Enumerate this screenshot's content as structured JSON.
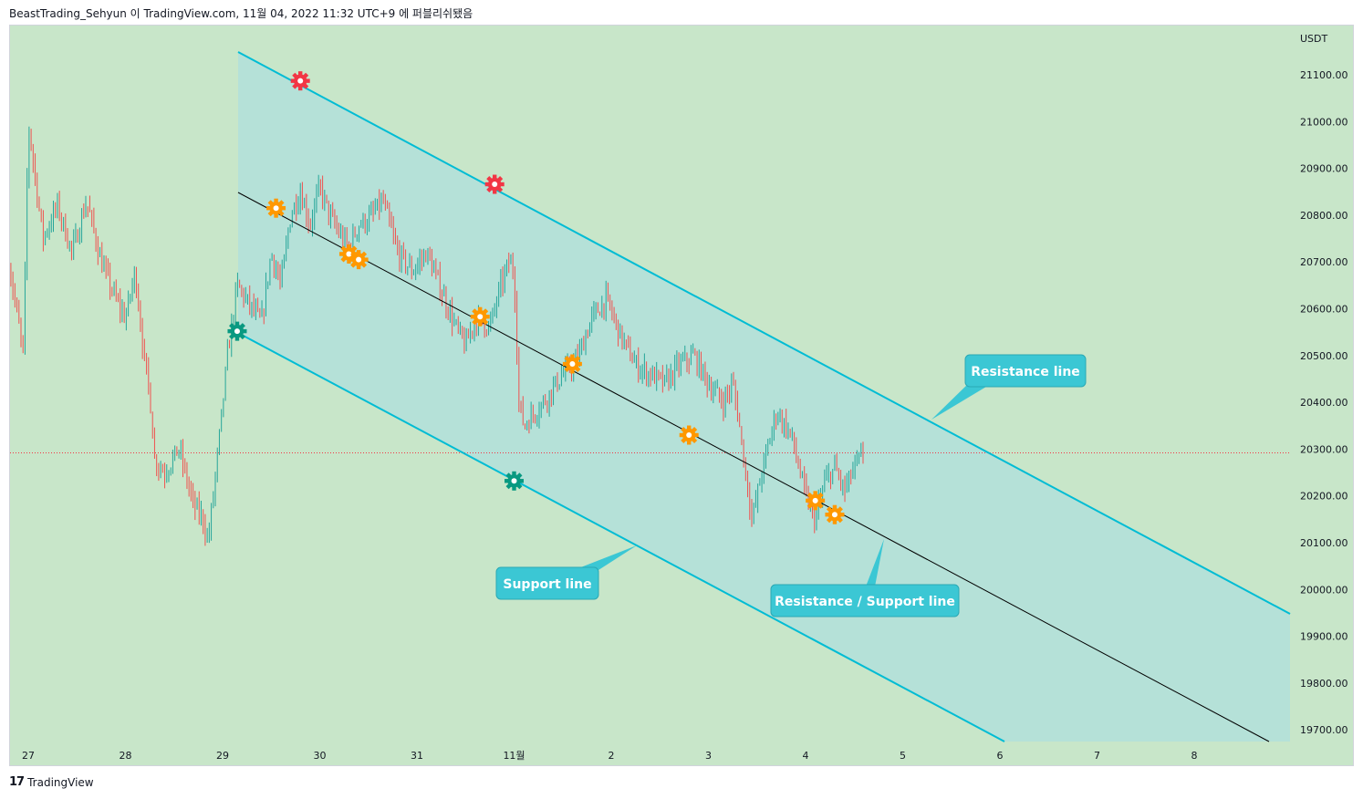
{
  "header": {
    "publish_info": "BeastTrading_Sehyun 이 TradingView.com, 11월 04, 2022 11:32 UTC+9 에 퍼블리쉬됐음"
  },
  "footer": {
    "logo_mark": "17",
    "brand": "TradingView"
  },
  "colors": {
    "background": "#c8e6c9",
    "channel_fill": "#b2dfdb",
    "channel_line": "#00bcd4",
    "mid_line": "#000000",
    "candle_up": "#26a69a",
    "candle_down": "#ef5350",
    "label_bg": "#3bc7d4",
    "gear_red": "#f23645",
    "gear_orange": "#ff9800",
    "gear_teal": "#089981",
    "price_line": "#f23645"
  },
  "chart_data": {
    "type": "candlestick",
    "symbol_currency": "USDT",
    "x_tick_labels": [
      "27",
      "28",
      "29",
      "30",
      "31",
      "11월",
      "2",
      "3",
      "4",
      "5",
      "6",
      "7",
      "8"
    ],
    "y_tick_labels": [
      "21100.00",
      "21000.00",
      "20900.00",
      "20800.00",
      "20700.00",
      "20600.00",
      "20500.00",
      "20400.00",
      "20300.00",
      "20200.00",
      "20100.00",
      "20000.00",
      "19900.00",
      "19800.00",
      "19700.00"
    ],
    "ylim": [
      19680,
      21185
    ],
    "xlim": [
      26.8,
      9.1
    ],
    "current_price": 20292,
    "price_path": [
      [
        26.8,
        20700
      ],
      [
        26.95,
        20500
      ],
      [
        27.0,
        21000
      ],
      [
        27.15,
        20750
      ],
      [
        27.3,
        20820
      ],
      [
        27.45,
        20720
      ],
      [
        27.6,
        20830
      ],
      [
        27.75,
        20700
      ],
      [
        27.9,
        20620
      ],
      [
        28.0,
        20580
      ],
      [
        28.1,
        20680
      ],
      [
        28.2,
        20480
      ],
      [
        28.25,
        20420
      ],
      [
        28.3,
        20280
      ],
      [
        28.4,
        20250
      ],
      [
        28.55,
        20300
      ],
      [
        28.7,
        20180
      ],
      [
        28.8,
        20150
      ],
      [
        28.85,
        20100
      ],
      [
        28.95,
        20290
      ],
      [
        29.05,
        20500
      ],
      [
        29.15,
        20650
      ],
      [
        29.3,
        20600
      ],
      [
        29.4,
        20570
      ],
      [
        29.5,
        20720
      ],
      [
        29.6,
        20650
      ],
      [
        29.7,
        20800
      ],
      [
        29.8,
        20850
      ],
      [
        29.9,
        20780
      ],
      [
        30.0,
        20860
      ],
      [
        30.1,
        20800
      ],
      [
        30.2,
        20760
      ],
      [
        30.3,
        20730
      ],
      [
        30.4,
        20780
      ],
      [
        30.5,
        20790
      ],
      [
        30.65,
        20830
      ],
      [
        30.8,
        20720
      ],
      [
        30.95,
        20680
      ],
      [
        31.1,
        20720
      ],
      [
        31.25,
        20640
      ],
      [
        31.4,
        20560
      ],
      [
        31.5,
        20520
      ],
      [
        31.6,
        20580
      ],
      [
        31.75,
        20560
      ],
      [
        31.85,
        20640
      ],
      [
        31.95,
        20700
      ],
      [
        32.0,
        20680
      ],
      [
        32.05,
        20400
      ],
      [
        32.1,
        20350
      ],
      [
        32.3,
        20400
      ],
      [
        32.5,
        20460
      ],
      [
        32.65,
        20490
      ],
      [
        32.8,
        20580
      ],
      [
        32.95,
        20620
      ],
      [
        33.1,
        20540
      ],
      [
        33.25,
        20480
      ],
      [
        33.4,
        20460
      ],
      [
        33.55,
        20440
      ],
      [
        33.7,
        20480
      ],
      [
        33.85,
        20500
      ],
      [
        34.0,
        20440
      ],
      [
        34.15,
        20400
      ],
      [
        34.25,
        20440
      ],
      [
        34.3,
        20380
      ],
      [
        34.35,
        20300
      ],
      [
        34.45,
        20150
      ],
      [
        34.55,
        20250
      ],
      [
        34.7,
        20380
      ],
      [
        34.85,
        20330
      ],
      [
        35.0,
        20200
      ],
      [
        35.1,
        20150
      ],
      [
        35.2,
        20230
      ],
      [
        35.3,
        20260
      ],
      [
        35.4,
        20210
      ],
      [
        35.5,
        20260
      ],
      [
        35.6,
        20290
      ]
    ],
    "annotations": [
      "Resistance line",
      "Support line",
      "Resistance / Support line"
    ],
    "markers": [
      {
        "type": "red-gear",
        "x": 29.8,
        "y": 21087
      },
      {
        "type": "red-gear",
        "x": 31.8,
        "y": 20866
      },
      {
        "type": "teal-gear",
        "x": 29.15,
        "y": 20552
      },
      {
        "type": "teal-gear",
        "x": 32.0,
        "y": 20232
      },
      {
        "type": "orange-gear",
        "x": 29.55,
        "y": 20815
      },
      {
        "type": "orange-gear",
        "x": 30.3,
        "y": 20717
      },
      {
        "type": "orange-gear",
        "x": 30.4,
        "y": 20705
      },
      {
        "type": "orange-gear",
        "x": 31.65,
        "y": 20583
      },
      {
        "type": "orange-gear",
        "x": 32.6,
        "y": 20482
      },
      {
        "type": "orange-gear",
        "x": 33.8,
        "y": 20330
      },
      {
        "type": "orange-gear",
        "x": 35.1,
        "y": 20190
      },
      {
        "type": "orange-gear",
        "x": 35.3,
        "y": 20160
      }
    ]
  }
}
